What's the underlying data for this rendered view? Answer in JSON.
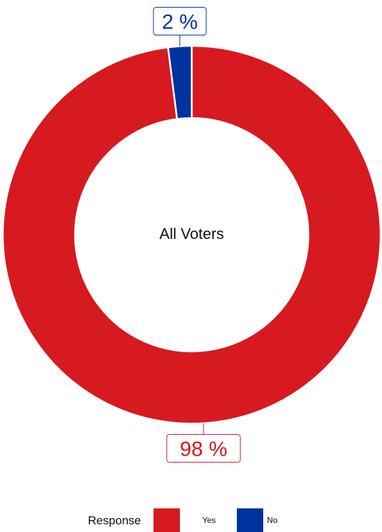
{
  "chart_data": {
    "type": "pie",
    "variant": "donut",
    "center_label": "All Voters",
    "legend": {
      "title": "Response",
      "placement": "bottom-center"
    },
    "slices": [
      {
        "label": "Yes",
        "value": 98,
        "display": "98 %",
        "color": "#d71920"
      },
      {
        "label": "No",
        "value": 2,
        "display": "2 %",
        "color": "#0033a0"
      }
    ]
  }
}
